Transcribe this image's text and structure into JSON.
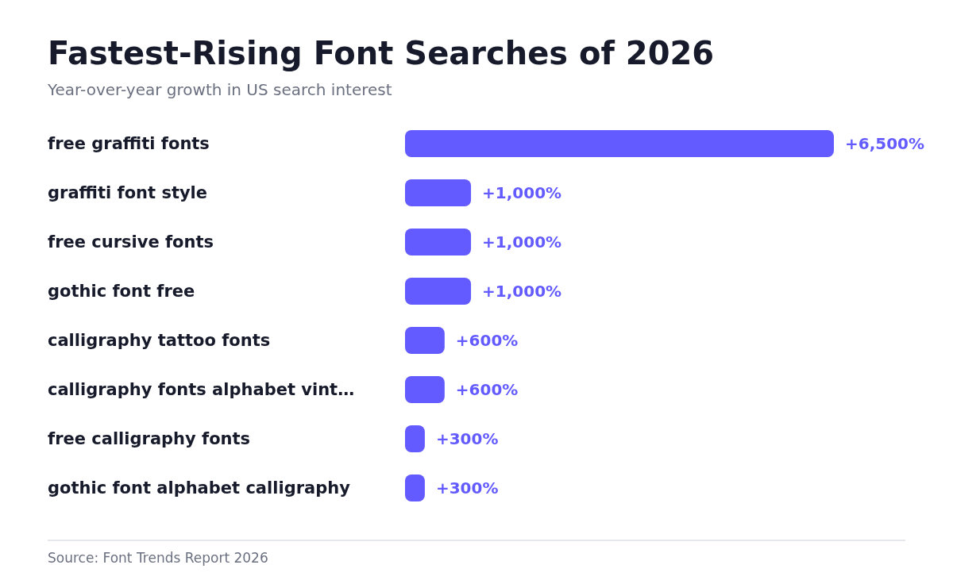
{
  "chart_data": {
    "type": "bar",
    "orientation": "horizontal",
    "title": "Fastest-Rising Font Searches of 2026",
    "subtitle": "Year-over-year growth in US search interest",
    "categories": [
      "free graffiti fonts",
      "graffiti font style",
      "free cursive fonts",
      "gothic font free",
      "calligraphy tattoo fonts",
      "calligraphy fonts alphabet vint…",
      "free calligraphy fonts",
      "gothic font alphabet calligraphy"
    ],
    "values": [
      6500,
      1000,
      1000,
      1000,
      600,
      600,
      300,
      300
    ],
    "value_labels": [
      "+6,500%",
      "+1,000%",
      "+1,000%",
      "+1,000%",
      "+600%",
      "+600%",
      "+300%",
      "+300%"
    ],
    "color": "#635bff",
    "annotations": [
      "Source: Font Trends Report 2026"
    ]
  }
}
